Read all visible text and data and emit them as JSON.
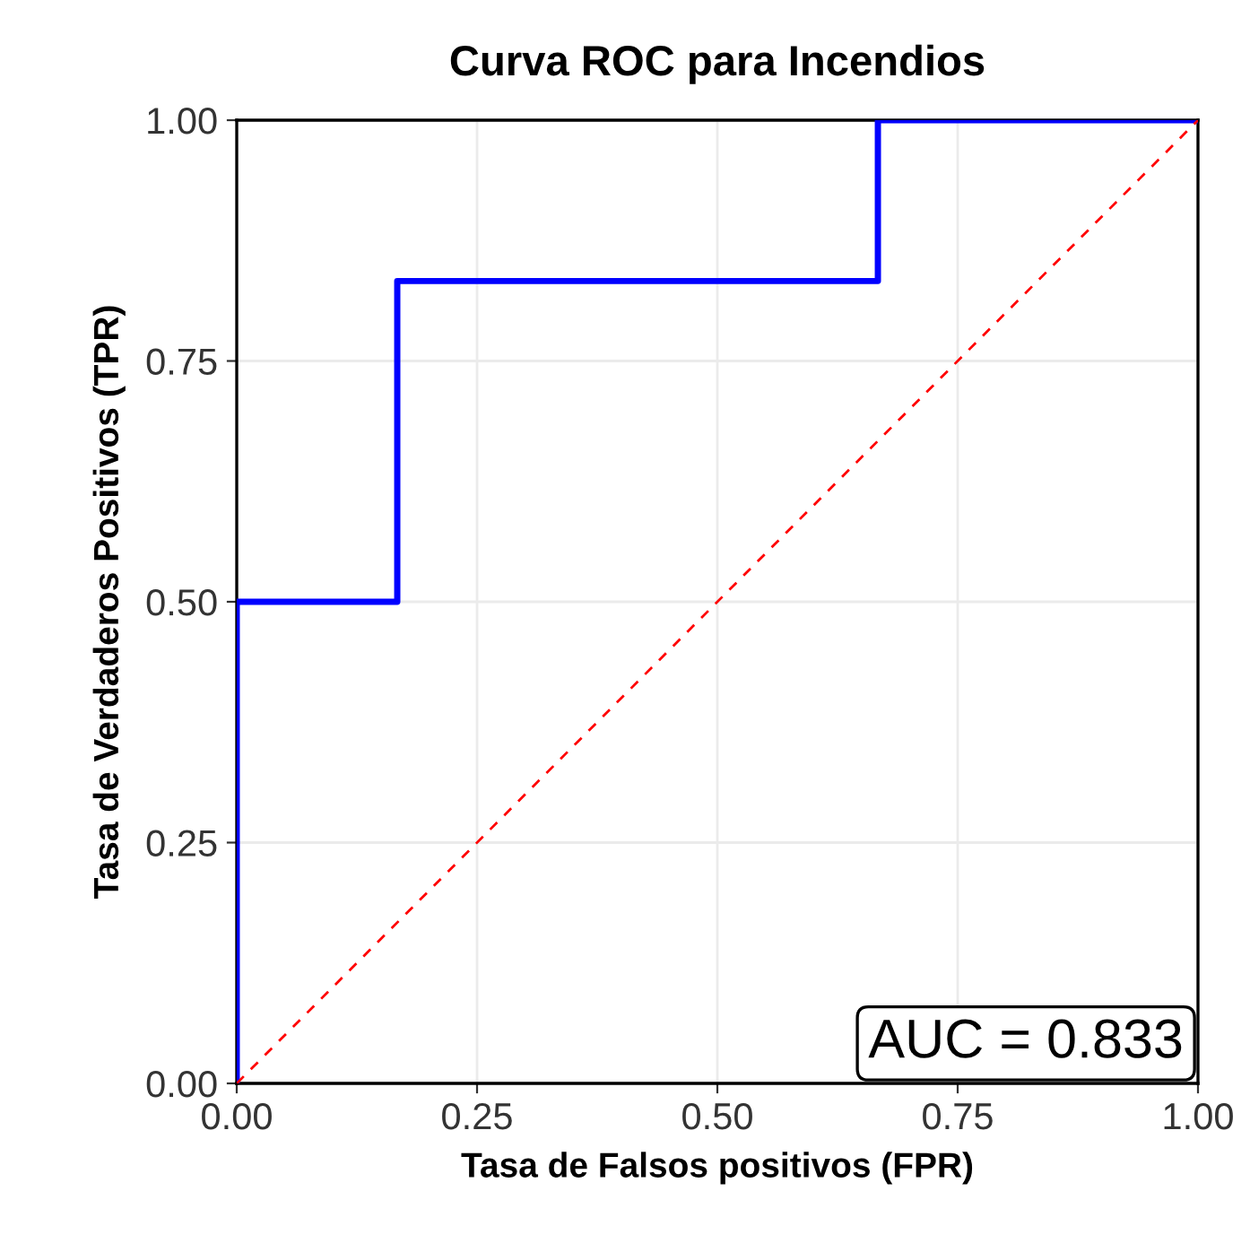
{
  "chart_data": {
    "type": "line",
    "title": "Curva ROC para Incendios",
    "xlabel": "Tasa de Falsos positivos (FPR)",
    "ylabel": "Tasa de Verdaderos Positivos (TPR)",
    "series": [
      {
        "color": "#0000ff",
        "line_style": "solid",
        "x": [
          0,
          0,
          0.167,
          0.167,
          0.667,
          0.667,
          1
        ],
        "values": [
          0,
          0.5,
          0.5,
          0.833,
          0.833,
          1,
          1
        ]
      },
      {
        "type": "line",
        "color": "#ff0000",
        "line_style": "dashed",
        "x": [
          0,
          1
        ],
        "values": [
          0,
          1
        ]
      }
    ],
    "annotations": [
      "AUC = 0.833"
    ],
    "xlim": [
      0,
      1
    ],
    "ylim": [
      0,
      1
    ],
    "xticks": [
      {
        "value": 0,
        "label": "0.00"
      },
      {
        "value": 0.25,
        "label": "0.25"
      },
      {
        "value": 0.5,
        "label": "0.50"
      },
      {
        "value": 0.75,
        "label": "0.75"
      },
      {
        "value": 1,
        "label": "1.00"
      }
    ],
    "yticks": [
      {
        "value": 0,
        "label": "0.00"
      },
      {
        "value": 0.25,
        "label": "0.25"
      },
      {
        "value": 0.5,
        "label": "0.50"
      },
      {
        "value": 0.75,
        "label": "0.75"
      },
      {
        "value": 1,
        "label": "1.00"
      }
    ],
    "grid": true,
    "legend": false
  }
}
